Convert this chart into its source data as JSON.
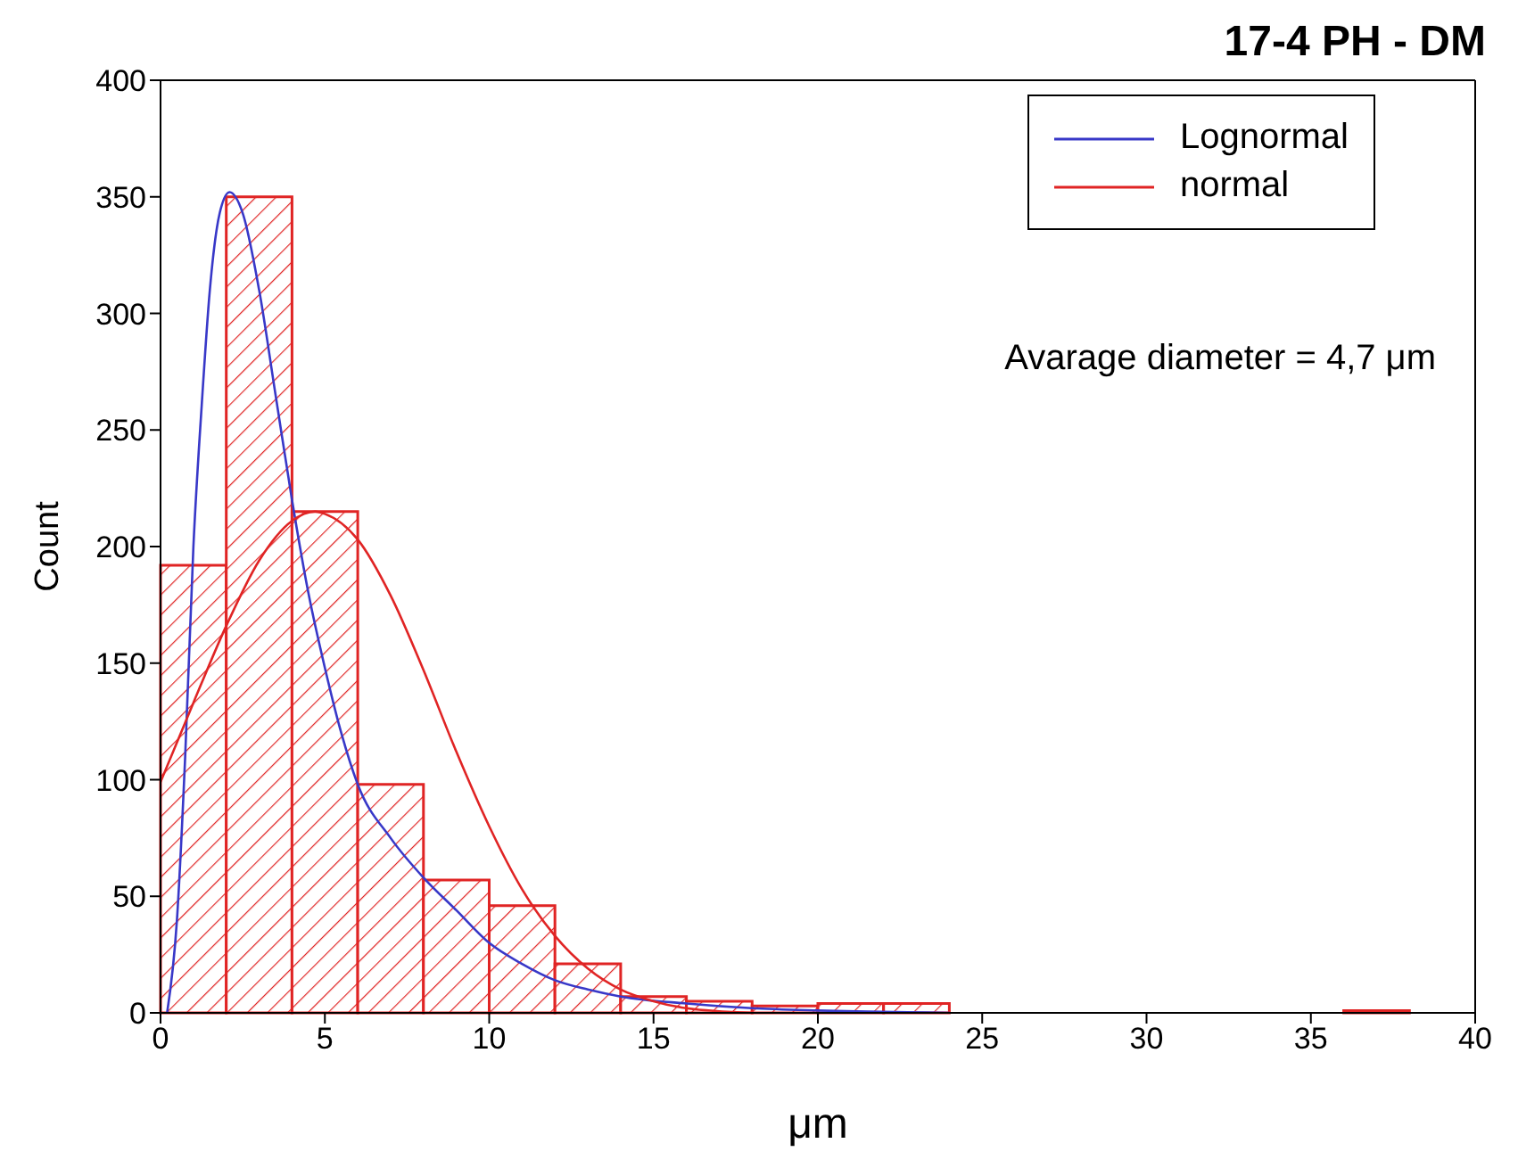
{
  "chart_data": {
    "type": "histogram",
    "title": "17-4 PH - DM",
    "xlabel": "μm",
    "ylabel": "Count",
    "annotations": [
      "Avarage diameter = 4,7 μm"
    ],
    "bins": [
      0,
      2,
      4,
      6,
      8,
      10,
      12,
      14,
      16,
      18,
      20,
      22,
      24,
      26,
      28,
      30,
      32,
      34,
      36,
      38
    ],
    "values": [
      192,
      350,
      215,
      98,
      57,
      46,
      21,
      7,
      5,
      3,
      4,
      4,
      0,
      0,
      0,
      0,
      0,
      0,
      1
    ],
    "color": "#e02424",
    "series": [
      {
        "name": "Lognormal",
        "type": "line",
        "color": "#3838c8",
        "x": [
          0.2,
          0.5,
          0.75,
          1,
          1.25,
          1.5,
          1.8,
          2.1,
          2.5,
          3,
          3.5,
          4,
          4.5,
          5,
          5.5,
          6,
          7,
          8,
          9,
          10,
          11,
          12,
          13,
          14,
          16,
          18,
          20,
          24
        ],
        "values": [
          0,
          40,
          110,
          200,
          260,
          310,
          343,
          352,
          343,
          310,
          265,
          220,
          180,
          148,
          120,
          98,
          75,
          58,
          44,
          30,
          21,
          14,
          10,
          7,
          4,
          2,
          1,
          0
        ]
      },
      {
        "name": "normal",
        "type": "line",
        "color": "#e02424",
        "x": [
          0,
          1,
          2,
          3,
          4,
          4.7,
          5,
          6,
          7,
          8,
          9,
          10,
          11,
          12,
          13,
          14,
          15,
          16,
          18
        ],
        "values": [
          99,
          133,
          166,
          194,
          211,
          215,
          214,
          203,
          179,
          147,
          112,
          80,
          53,
          33,
          19,
          10,
          5,
          2,
          0
        ]
      }
    ],
    "xlim": [
      0,
      40
    ],
    "xticks": [
      0,
      5,
      10,
      15,
      20,
      25,
      30,
      35,
      40
    ],
    "ylim": [
      0,
      400
    ],
    "yticks": [
      0,
      50,
      100,
      150,
      200,
      250,
      300,
      350,
      400
    ],
    "grid": false,
    "legend": "top right",
    "marker": "none",
    "line_style": "solid"
  }
}
